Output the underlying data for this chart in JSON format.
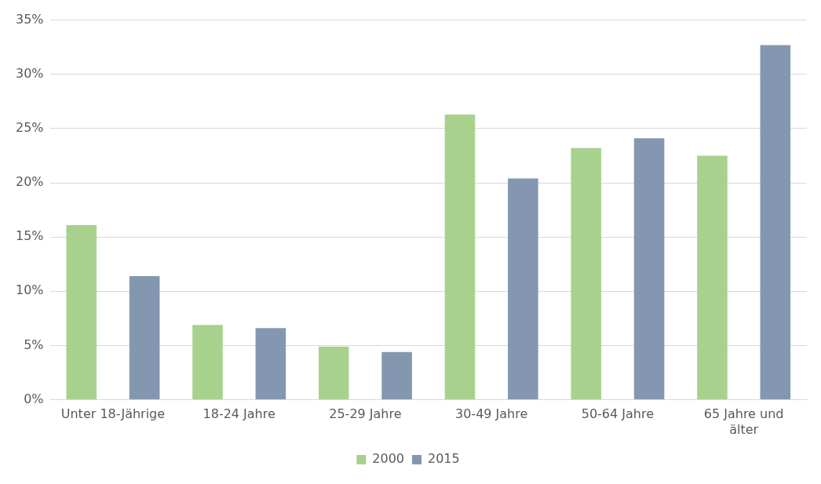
{
  "chart_data": {
    "type": "bar",
    "categories": [
      "Unter 18-Jährige",
      "18-24 Jahre",
      "25-29 Jahre",
      "30-49 Jahre",
      "50-64 Jahre",
      "65 Jahre und älter"
    ],
    "series": [
      {
        "name": "2000",
        "color": "#a9d18e",
        "values": [
          16.1,
          6.9,
          4.9,
          26.3,
          23.2,
          22.5
        ]
      },
      {
        "name": "2015",
        "color": "#8497b0",
        "values": [
          11.4,
          6.6,
          4.4,
          20.4,
          24.1,
          32.7
        ]
      }
    ],
    "ylim": [
      0,
      35
    ],
    "yticks": [
      {
        "value": 0,
        "label": "0%"
      },
      {
        "value": 5,
        "label": "5%"
      },
      {
        "value": 10,
        "label": "10%"
      },
      {
        "value": 15,
        "label": "15%"
      },
      {
        "value": 20,
        "label": "20%"
      },
      {
        "value": 25,
        "label": "25%"
      },
      {
        "value": 30,
        "label": "30%"
      },
      {
        "value": 35,
        "label": "35%"
      }
    ],
    "grid": "y",
    "legend": "bottom"
  }
}
